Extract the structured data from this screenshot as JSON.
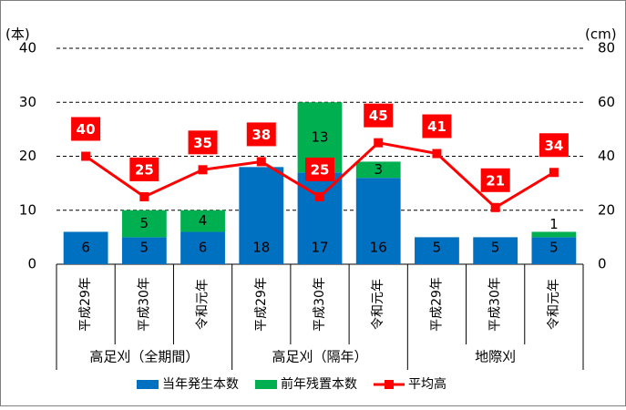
{
  "chart_data": {
    "type": "bar",
    "y_unit_label": "(本)",
    "y2_unit_label": "(cm)",
    "categories": [
      "平成29年",
      "平成30年",
      "令和元年",
      "平成29年",
      "平成30年",
      "令和元年",
      "平成29年",
      "平成30年",
      "令和元年"
    ],
    "groups": [
      "高足刈（全期間）",
      "高足刈（隔年）",
      "地際刈"
    ],
    "series": [
      {
        "name": "当年発生本数",
        "color": "#0070c0",
        "stack": true,
        "values": [
          6,
          5,
          6,
          18,
          17,
          16,
          5,
          5,
          5
        ]
      },
      {
        "name": "前年残置本数",
        "color": "#00b050",
        "stack": true,
        "values": [
          null,
          5,
          4,
          null,
          13,
          3,
          null,
          null,
          1
        ]
      },
      {
        "name": "平均高",
        "color": "#ff0000",
        "type": "line",
        "axis": "y2",
        "values": [
          40,
          25,
          35,
          38,
          25,
          45,
          41,
          21,
          34
        ]
      }
    ],
    "ylim": [
      0,
      40
    ],
    "yticks": [
      0,
      10,
      20,
      30,
      40
    ],
    "y2lim": [
      0,
      80
    ],
    "y2ticks": [
      0,
      20,
      40,
      60,
      80
    ],
    "grid": true,
    "legend": "bottom"
  }
}
